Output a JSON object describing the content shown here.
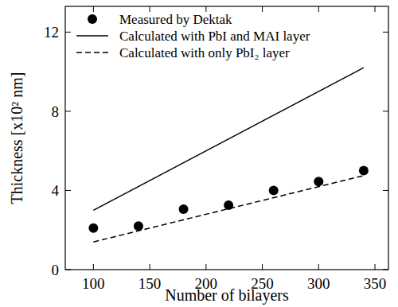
{
  "chart_data": {
    "type": "scatter",
    "x_label": "Number of bilayers",
    "y_label": "Thickness [x10² nm]",
    "xlim": [
      75,
      362
    ],
    "ylim": [
      0,
      13.3
    ],
    "xticks": [
      100,
      150,
      200,
      250,
      300,
      350
    ],
    "yticks": [
      0,
      4,
      8,
      12
    ],
    "legend": "upper left",
    "series": [
      {
        "name": "Measured by Dektak",
        "type": "scatter",
        "marker": "circle",
        "color": "#000000",
        "x": [
          100,
          140,
          180,
          220,
          260,
          300,
          340
        ],
        "values": [
          2.1,
          2.2,
          3.05,
          3.25,
          4.0,
          4.45,
          5.0
        ]
      },
      {
        "name": "Calculated with PbI and MAI layer",
        "type": "line",
        "line_style": "solid",
        "color": "#000000",
        "x": [
          100,
          340
        ],
        "values": [
          3.0,
          10.2
        ]
      },
      {
        "name": "Calculated with only PbI₂ layer",
        "type": "line",
        "line_style": "dashed",
        "color": "#000000",
        "x": [
          100,
          340
        ],
        "values": [
          1.4,
          4.75
        ]
      }
    ]
  }
}
